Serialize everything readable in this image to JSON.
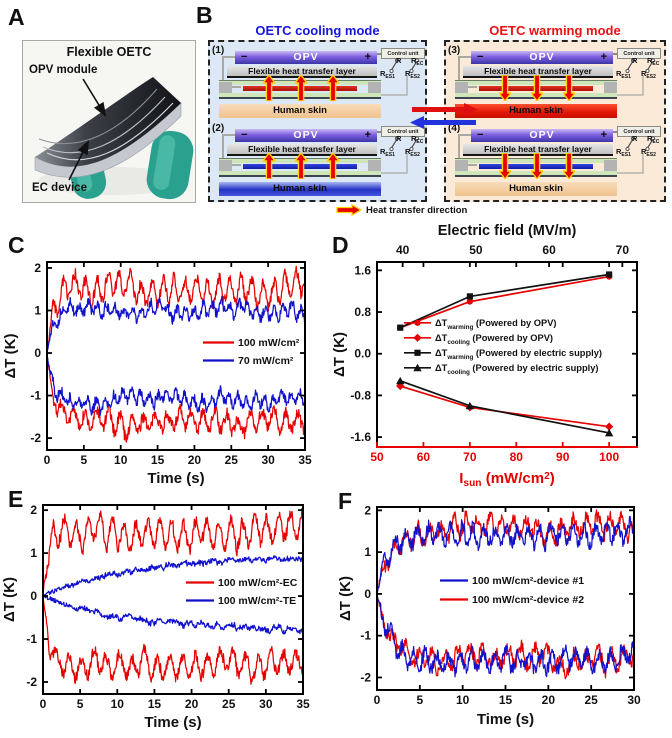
{
  "panels": {
    "a": "A",
    "b": "B",
    "c": "C",
    "d": "D",
    "e": "E",
    "f": "F"
  },
  "panelA": {
    "title": "Flexible OETC",
    "opv_label": "OPV module",
    "ec_label": "EC device"
  },
  "panelB": {
    "cooling_title": "OETC cooling mode",
    "warming_title": "OETC warming mode",
    "heat_legend": "Heat transfer direction",
    "labels": {
      "opv": "OPV",
      "minus": "−",
      "plus": "+",
      "fhtl": "Flexible heat transfer layer",
      "skin": "Human skin",
      "control_unit": "Control unit",
      "r": "R",
      "rec": [
        "R",
        "EC"
      ],
      "res1": [
        "R",
        "ES1"
      ],
      "res2": [
        "R",
        "ES2"
      ]
    },
    "diagrams": [
      {
        "num": "(1)",
        "strip": "red",
        "arrow": "up",
        "skin": "warm"
      },
      {
        "num": "(2)",
        "strip": "blue",
        "arrow": "up",
        "skin": "cold"
      },
      {
        "num": "(3)",
        "strip": "red",
        "arrow": "down",
        "skin": "hot"
      },
      {
        "num": "(4)",
        "strip": "blue",
        "arrow": "down",
        "skin": "warm"
      }
    ],
    "colors": {
      "cooling_bg": "#dde8f6",
      "warming_bg": "#fcead9",
      "cooling_title": "#1515e0",
      "warming_title": "#ee1010",
      "strip_red": "#cc1414",
      "strip_blue": "#1b2ecc",
      "heat_arrow_fill": "#e60000",
      "heat_arrow_outline": "#ffd400"
    }
  },
  "chart_data": [
    {
      "panel": "C",
      "type": "line",
      "xlabel": "Time (s)",
      "ylabel": "ΔT (K)",
      "xlim": [
        0,
        35
      ],
      "ylim": [
        -2.28,
        2.14
      ],
      "xticks": [
        0,
        5,
        10,
        15,
        20,
        25,
        30,
        35
      ],
      "yticks": [
        -2,
        -1,
        0,
        1,
        2
      ],
      "grid": false,
      "legend_position": "middle-right",
      "legend": [
        {
          "label": "100 mW/cm²",
          "color": "#e60000"
        },
        {
          "label": "70 mW/cm²",
          "color": "#1212cc"
        }
      ],
      "summary": "Noisy ΔT traces vs time: 100 mW/cm² saturates near +1.5 K (warming) and −1.7 K (cooling); 70 mW/cm² near +1.0 K and −1.1 K, all reaching steady state within ~3 s",
      "series": [
        {
          "name": "100 mW/cm² warming",
          "color": "#e60000",
          "mode": "noisy",
          "target": 1.52,
          "tau": 0.8,
          "noise": 0.13,
          "ripple": 0.27,
          "period": 1.5,
          "wander": 0.15,
          "seed": 3,
          "tmax": 35
        },
        {
          "name": "100 mW/cm² cooling",
          "color": "#e60000",
          "mode": "noisy",
          "target": -1.68,
          "tau": 1.0,
          "noise": 0.13,
          "ripple": 0.22,
          "period": 1.6,
          "wander": 0.15,
          "seed": 7,
          "tmax": 35
        },
        {
          "name": "70 mW/cm² warming",
          "color": "#1212cc",
          "mode": "noisy",
          "target": 1.02,
          "tau": 0.7,
          "noise": 0.11,
          "ripple": 0.13,
          "period": 1.2,
          "wander": 0.12,
          "seed": 13,
          "tmax": 35
        },
        {
          "name": "70 mW/cm² cooling",
          "color": "#1212cc",
          "mode": "noisy",
          "target": -1.12,
          "tau": 0.9,
          "noise": 0.11,
          "ripple": 0.13,
          "period": 1.2,
          "wander": 0.12,
          "seed": 17,
          "tmax": 35
        }
      ]
    },
    {
      "panel": "D",
      "type": "scatter-line",
      "top_xlabel": "Electric field (MV/m)",
      "xlabel_parts": [
        [
          "I"
        ],
        [
          "sun",
          "sub"
        ],
        [
          " (mW/cm"
        ],
        [
          "2",
          "sup"
        ],
        [
          ")"
        ]
      ],
      "ylabel": "ΔT (K)",
      "xlim": [
        50,
        106
      ],
      "top_xlim": [
        36.5,
        72
      ],
      "ylim": [
        -1.79,
        1.76
      ],
      "xticks": [
        50,
        60,
        70,
        80,
        90,
        100
      ],
      "top_xticks": [
        40,
        50,
        60,
        70
      ],
      "ytick_labels": [
        "1.6",
        "0.8",
        "0.0",
        "-0.8",
        "-1.6"
      ],
      "yticks": [
        1.6,
        0.8,
        0.0,
        -0.8,
        -1.6
      ],
      "x_axis_color": "#e60000",
      "efield_at_points": [
        37,
        47,
        67
      ],
      "series": [
        {
          "name": "ΔT_warming (Powered by OPV)",
          "label_parts": [
            [
              "ΔT"
            ],
            [
              "warming",
              "sub"
            ],
            [
              " (Powered by OPV)"
            ]
          ],
          "color": "#e60000",
          "marker": "circle",
          "x": [
            55,
            70,
            100
          ],
          "y": [
            0.5,
            1.0,
            1.48
          ]
        },
        {
          "name": "ΔT_cooling (Powered by OPV)",
          "label_parts": [
            [
              "ΔT"
            ],
            [
              "cooling",
              "sub"
            ],
            [
              " (Powered by OPV)"
            ]
          ],
          "color": "#e60000",
          "marker": "diamond",
          "x": [
            55,
            70,
            100
          ],
          "y": [
            -0.62,
            -1.03,
            -1.4
          ]
        },
        {
          "name": "ΔT_warming (Powered by electric supply)",
          "label_parts": [
            [
              "ΔT"
            ],
            [
              "warming",
              "sub"
            ],
            [
              " (Powered by electric supply)"
            ]
          ],
          "color": "#111111",
          "marker": "square",
          "x": [
            55,
            70,
            100
          ],
          "y": [
            0.5,
            1.1,
            1.52
          ]
        },
        {
          "name": "ΔT_cooling (Powered by electric supply)",
          "label_parts": [
            [
              "ΔT"
            ],
            [
              "cooling",
              "sub"
            ],
            [
              " (Powered by electric supply)"
            ]
          ],
          "color": "#111111",
          "marker": "triangle",
          "x": [
            55,
            70,
            100
          ],
          "y": [
            -0.52,
            -1.0,
            -1.52
          ]
        }
      ]
    },
    {
      "panel": "E",
      "type": "line",
      "xlabel": "Time (s)",
      "ylabel": "ΔT (K)",
      "xlim": [
        0,
        35
      ],
      "ylim": [
        -2.28,
        2.12
      ],
      "xticks": [
        0,
        5,
        10,
        15,
        20,
        25,
        30,
        35
      ],
      "yticks": [
        -2,
        -1,
        0,
        1,
        2
      ],
      "grid": false,
      "legend_position": "middle-right",
      "legend": [
        {
          "label": "100 mW/cm²-EC",
          "color": "#e60000"
        },
        {
          "label": "100 mW/cm²-TE",
          "color": "#1212cc"
        }
      ],
      "summary": "EC device reaches ±1.5 K within ~2 s (noisy traces); TE device rises slowly, reaching about +0.8 K and −0.7 K after 35 s",
      "series": [
        {
          "name": "100 mW/cm²-EC warming",
          "color": "#e60000",
          "mode": "noisy",
          "target": 1.5,
          "tau": 0.7,
          "noise": 0.13,
          "ripple": 0.3,
          "period": 1.6,
          "wander": 0.15,
          "seed": 21,
          "tmax": 35
        },
        {
          "name": "100 mW/cm²-EC cooling",
          "color": "#e60000",
          "mode": "noisy",
          "target": -1.62,
          "tau": 1.0,
          "noise": 0.13,
          "ripple": 0.25,
          "period": 1.7,
          "wander": 0.15,
          "seed": 29,
          "tmax": 35
        },
        {
          "name": "100 mW/cm²-TE warming",
          "color": "#1212cc",
          "mode": "noisy",
          "target": 0.9,
          "tau": 11,
          "noise": 0.05,
          "ripple": 0.03,
          "period": 2,
          "wander": 0.05,
          "seed": 31,
          "tmax": 35
        },
        {
          "name": "100 mW/cm²-TE cooling",
          "color": "#1212cc",
          "mode": "noisy",
          "target": -0.8,
          "tau": 11,
          "noise": 0.05,
          "ripple": 0.03,
          "period": 2,
          "wander": 0.05,
          "seed": 37,
          "tmax": 35
        }
      ]
    },
    {
      "panel": "F",
      "type": "line",
      "xlabel": "Time (s)",
      "ylabel": "ΔT (K)",
      "xlim": [
        0,
        30
      ],
      "ylim": [
        -2.3,
        2.08
      ],
      "xticks": [
        0,
        5,
        10,
        15,
        20,
        25,
        30
      ],
      "yticks": [
        -2,
        -1,
        0,
        1,
        2
      ],
      "grid": false,
      "legend_position": "middle-center",
      "legend": [
        {
          "label": "100 mW/cm²-device #1",
          "color": "#1212cc"
        },
        {
          "label": "100 mW/cm²-device #2",
          "color": "#e60000"
        }
      ],
      "summary": "Two devices at 100 mW/cm² show overlapping noisy traces saturating near +1.5 K (warming) and −1.6 K (cooling)",
      "series": [
        {
          "name": "100 mW/cm²-device #2 warming",
          "color": "#e60000",
          "mode": "noisy",
          "target": 1.55,
          "tau": 1.5,
          "noise": 0.15,
          "ripple": 0.2,
          "period": 1.4,
          "wander": 0.15,
          "seed": 41,
          "tmax": 30
        },
        {
          "name": "100 mW/cm²-device #2 cooling",
          "color": "#e60000",
          "mode": "noisy",
          "target": -1.58,
          "tau": 1.5,
          "noise": 0.15,
          "ripple": 0.2,
          "period": 1.5,
          "wander": 0.15,
          "seed": 43,
          "tmax": 30
        },
        {
          "name": "100 mW/cm²-device #1 warming",
          "color": "#1212cc",
          "mode": "noisy",
          "target": 1.5,
          "tau": 1.1,
          "noise": 0.15,
          "ripple": 0.2,
          "period": 1.3,
          "wander": 0.15,
          "seed": 47,
          "tmax": 30
        },
        {
          "name": "100 mW/cm²-device #1 cooling",
          "color": "#1212cc",
          "mode": "noisy",
          "target": -1.52,
          "tau": 1.2,
          "noise": 0.15,
          "ripple": 0.2,
          "period": 1.35,
          "wander": 0.15,
          "seed": 53,
          "tmax": 30
        }
      ]
    }
  ]
}
